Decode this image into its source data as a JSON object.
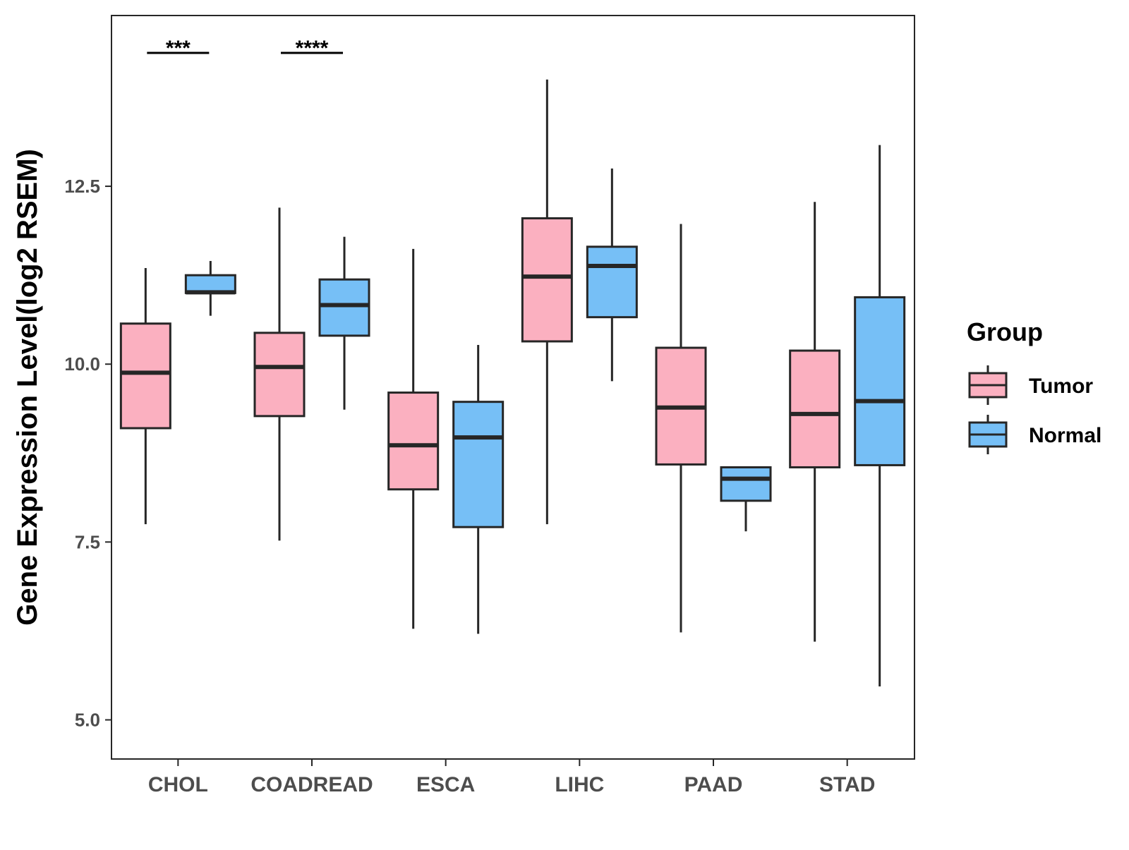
{
  "chart_data": {
    "type": "boxplot",
    "ylabel": "Gene Expression Level(log2 RSEM)",
    "xlabel": "",
    "ylim": [
      4.45,
      14.9
    ],
    "yticks": [
      5.0,
      7.5,
      10.0,
      12.5
    ],
    "ytick_labels": [
      "5.0",
      "7.5",
      "10.0",
      "12.5"
    ],
    "categories": [
      "CHOL",
      "COADREAD",
      "ESCA",
      "LIHC",
      "PAAD",
      "STAD"
    ],
    "legend": {
      "title": "Group",
      "position": "right",
      "entries": [
        {
          "name": "Tumor",
          "color": "#FBB0C0"
        },
        {
          "name": "Normal",
          "color": "#76BFF6"
        }
      ]
    },
    "series": [
      {
        "name": "Tumor",
        "color": "#FBB0C0",
        "boxes": [
          {
            "min": 7.75,
            "q1": 9.1,
            "median": 9.88,
            "q3": 10.57,
            "max": 11.35
          },
          {
            "min": 7.52,
            "q1": 9.27,
            "median": 9.96,
            "q3": 10.44,
            "max": 12.2
          },
          {
            "min": 6.28,
            "q1": 8.24,
            "median": 8.86,
            "q3": 9.6,
            "max": 11.62
          },
          {
            "min": 7.75,
            "q1": 10.32,
            "median": 11.23,
            "q3": 12.05,
            "max": 14.0
          },
          {
            "min": 6.23,
            "q1": 8.59,
            "median": 9.39,
            "q3": 10.23,
            "max": 11.97
          },
          {
            "min": 6.1,
            "q1": 8.55,
            "median": 9.3,
            "q3": 10.19,
            "max": 12.28
          }
        ]
      },
      {
        "name": "Normal",
        "color": "#76BFF6",
        "boxes": [
          {
            "min": 10.68,
            "q1": 11.0,
            "median": 11.01,
            "q3": 11.25,
            "max": 11.45
          },
          {
            "min": 9.36,
            "q1": 10.4,
            "median": 10.83,
            "q3": 11.19,
            "max": 11.79
          },
          {
            "min": 6.21,
            "q1": 7.71,
            "median": 8.97,
            "q3": 9.47,
            "max": 10.27
          },
          {
            "min": 9.76,
            "q1": 10.66,
            "median": 11.38,
            "q3": 11.65,
            "max": 12.75
          },
          {
            "min": 7.65,
            "q1": 8.08,
            "median": 8.39,
            "q3": 8.55,
            "max": 8.55
          },
          {
            "min": 5.47,
            "q1": 8.58,
            "median": 9.48,
            "q3": 10.94,
            "max": 13.08
          }
        ]
      }
    ],
    "annotations": [
      {
        "category": "CHOL",
        "label": "***"
      },
      {
        "category": "COADREAD",
        "label": "****"
      }
    ]
  }
}
